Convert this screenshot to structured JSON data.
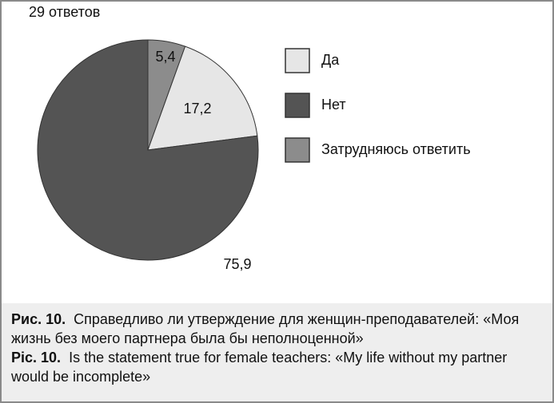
{
  "chart_data": {
    "type": "pie",
    "subtitle": "29 ответов",
    "categories": [
      "Да",
      "Нет",
      "Затрудняюсь ответить"
    ],
    "values": [
      17.2,
      75.9,
      5.4
    ],
    "value_labels": [
      "17,2",
      "75,9",
      "5,4"
    ],
    "colors": [
      "#e6e6e6",
      "#545454",
      "#8c8c8c"
    ],
    "legend": "right"
  },
  "caption": {
    "ru_label": "Рис. 10.",
    "ru_text": "Справедливо ли утверждение для женщин-преподавателей: «Моя жизнь без моего партнера была бы неполноценной»",
    "en_label": "Pic. 10.",
    "en_text": "Is the statement true for female teachers: «My life without my partner would be incomplete»"
  }
}
